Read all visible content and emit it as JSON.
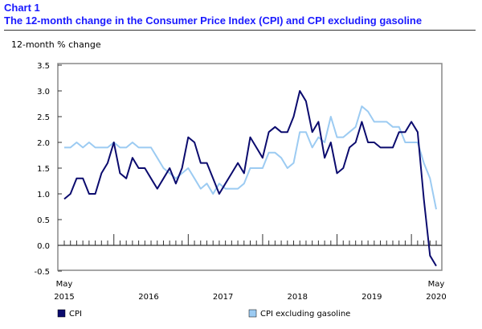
{
  "header": {
    "chart_number": "Chart 1",
    "title": "The 12-month change in the Consumer Price Index (CPI) and CPI excluding gasoline"
  },
  "chart_data": {
    "type": "line",
    "title": "The 12-month change in the Consumer Price Index (CPI) and CPI excluding gasoline",
    "ylabel": "12-month % change",
    "ylim": [
      -0.5,
      3.5
    ],
    "yticks": [
      "3.5",
      "3.0",
      "2.5",
      "2.0",
      "1.5",
      "1.0",
      "0.5",
      "0.0",
      "-0.5"
    ],
    "x_start": "May 2015",
    "x_end": "May 2020",
    "xtick_labels": {
      "start_month": "May",
      "start_year": "2015",
      "years": [
        "2016",
        "2017",
        "2018",
        "2019"
      ],
      "end_month": "May",
      "end_year": "2020"
    },
    "grid": false,
    "legend": "bottom",
    "series": [
      {
        "name": "CPI",
        "color": "#0b0b6e",
        "values": [
          0.9,
          1.0,
          1.3,
          1.3,
          1.0,
          1.0,
          1.4,
          1.6,
          2.0,
          1.4,
          1.3,
          1.7,
          1.5,
          1.5,
          1.3,
          1.1,
          1.3,
          1.5,
          1.2,
          1.5,
          2.1,
          2.0,
          1.6,
          1.6,
          1.3,
          1.0,
          1.2,
          1.4,
          1.6,
          1.4,
          2.1,
          1.9,
          1.7,
          2.2,
          2.3,
          2.2,
          2.2,
          2.5,
          3.0,
          2.8,
          2.2,
          2.4,
          1.7,
          2.0,
          1.4,
          1.5,
          1.9,
          2.0,
          2.4,
          2.0,
          2.0,
          1.9,
          1.9,
          1.9,
          2.2,
          2.2,
          2.4,
          2.2,
          0.9,
          -0.2,
          -0.4
        ]
      },
      {
        "name": "CPI excluding gasoline",
        "color": "#9ccbf2",
        "values": [
          1.9,
          1.9,
          2.0,
          1.9,
          2.0,
          1.9,
          1.9,
          1.9,
          2.0,
          1.9,
          1.9,
          2.0,
          1.9,
          1.9,
          1.9,
          1.7,
          1.5,
          1.4,
          1.3,
          1.4,
          1.5,
          1.3,
          1.1,
          1.2,
          1.0,
          1.2,
          1.1,
          1.1,
          1.1,
          1.2,
          1.5,
          1.5,
          1.5,
          1.8,
          1.8,
          1.7,
          1.5,
          1.6,
          2.2,
          2.2,
          1.9,
          2.1,
          2.0,
          2.5,
          2.1,
          2.1,
          2.2,
          2.3,
          2.7,
          2.6,
          2.4,
          2.4,
          2.4,
          2.3,
          2.3,
          2.0,
          2.0,
          2.0,
          1.6,
          1.3,
          0.7
        ]
      }
    ]
  }
}
